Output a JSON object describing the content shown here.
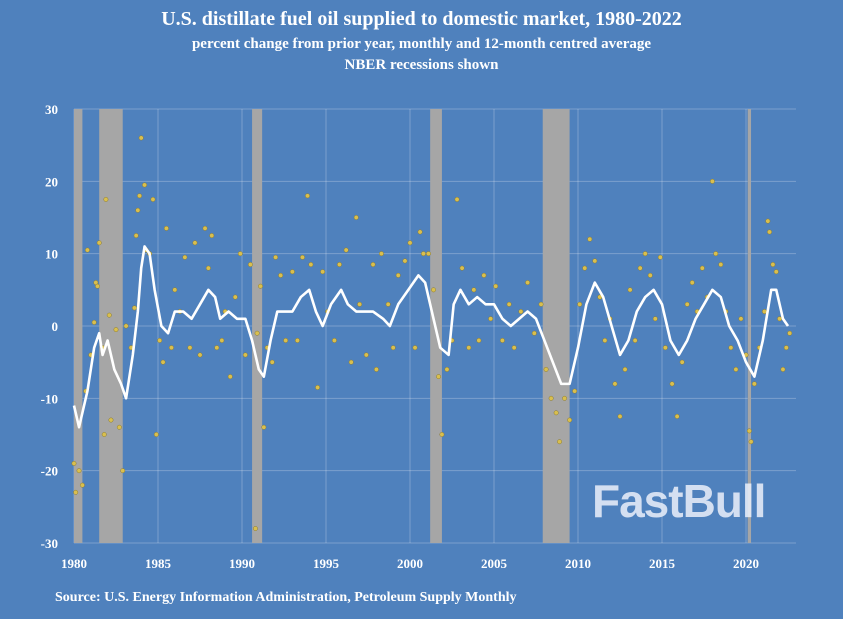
{
  "chart_data": {
    "type": "line",
    "title": "U.S. distillate fuel oil supplied to domestic market, 1980-2022",
    "subtitle": "percent change from prior year, monthly and 12-month centred average",
    "subtitle2": "NBER recessions shown",
    "source": "Source: U.S. Energy Information Administration, Petroleum Supply Monthly",
    "xlim": [
      1980,
      2023
    ],
    "ylim": [
      -30,
      30
    ],
    "x_ticks": [
      "1980",
      "1985",
      "1990",
      "1995",
      "2000",
      "2005",
      "2010",
      "2015",
      "2020"
    ],
    "y_ticks": [
      "30",
      "20",
      "10",
      "0",
      "-10",
      "-20",
      "-30"
    ],
    "grid": true,
    "colors": {
      "background": "#4f81bd",
      "average": "#ffffff",
      "monthly": "#d9bf4f",
      "recession": "#a6a6a6"
    },
    "recessions": [
      [
        1980.0,
        1980.5
      ],
      [
        1981.5,
        1982.9
      ],
      [
        1990.6,
        1991.2
      ],
      [
        2001.2,
        2001.9
      ],
      [
        2007.9,
        2009.5
      ],
      [
        2020.1,
        2020.3
      ]
    ],
    "average_12m": [
      [
        1980.0,
        -11
      ],
      [
        1980.3,
        -14
      ],
      [
        1980.8,
        -9
      ],
      [
        1981.2,
        -3
      ],
      [
        1981.5,
        -1
      ],
      [
        1981.7,
        -4
      ],
      [
        1982.0,
        -2
      ],
      [
        1982.4,
        -6
      ],
      [
        1982.8,
        -8
      ],
      [
        1983.1,
        -10
      ],
      [
        1983.5,
        -4
      ],
      [
        1983.8,
        2
      ],
      [
        1984.0,
        8
      ],
      [
        1984.2,
        11
      ],
      [
        1984.5,
        10
      ],
      [
        1984.8,
        5
      ],
      [
        1985.2,
        0
      ],
      [
        1985.6,
        -1
      ],
      [
        1986.0,
        2
      ],
      [
        1986.5,
        2
      ],
      [
        1987.0,
        1
      ],
      [
        1987.5,
        3
      ],
      [
        1988.0,
        5
      ],
      [
        1988.4,
        4
      ],
      [
        1988.7,
        1
      ],
      [
        1989.2,
        2
      ],
      [
        1989.7,
        1
      ],
      [
        1990.2,
        1
      ],
      [
        1990.6,
        -2
      ],
      [
        1991.0,
        -6
      ],
      [
        1991.3,
        -7
      ],
      [
        1991.7,
        -2
      ],
      [
        1992.1,
        2
      ],
      [
        1992.5,
        2
      ],
      [
        1993.0,
        2
      ],
      [
        1993.5,
        4
      ],
      [
        1994.0,
        5
      ],
      [
        1994.4,
        2
      ],
      [
        1994.8,
        0
      ],
      [
        1995.3,
        3
      ],
      [
        1995.9,
        5
      ],
      [
        1996.3,
        3
      ],
      [
        1996.8,
        2
      ],
      [
        1997.3,
        2
      ],
      [
        1997.8,
        2
      ],
      [
        1998.4,
        1
      ],
      [
        1998.8,
        0
      ],
      [
        1999.3,
        3
      ],
      [
        1999.9,
        5
      ],
      [
        2000.5,
        7
      ],
      [
        2000.9,
        6
      ],
      [
        2001.3,
        2
      ],
      [
        2001.8,
        -3
      ],
      [
        2002.3,
        -4
      ],
      [
        2002.6,
        3
      ],
      [
        2003.0,
        5
      ],
      [
        2003.5,
        3
      ],
      [
        2004.0,
        4
      ],
      [
        2004.5,
        3
      ],
      [
        2005.0,
        3
      ],
      [
        2005.5,
        1
      ],
      [
        2006.0,
        0
      ],
      [
        2006.5,
        1
      ],
      [
        2007.0,
        2
      ],
      [
        2007.5,
        1
      ],
      [
        2008.0,
        -2
      ],
      [
        2008.5,
        -5
      ],
      [
        2009.0,
        -8
      ],
      [
        2009.5,
        -8
      ],
      [
        2010.0,
        -3
      ],
      [
        2010.5,
        3
      ],
      [
        2011.0,
        6
      ],
      [
        2011.5,
        4
      ],
      [
        2012.0,
        0
      ],
      [
        2012.5,
        -4
      ],
      [
        2013.0,
        -2
      ],
      [
        2013.5,
        2
      ],
      [
        2014.0,
        4
      ],
      [
        2014.5,
        5
      ],
      [
        2015.0,
        3
      ],
      [
        2015.5,
        -2
      ],
      [
        2016.0,
        -4
      ],
      [
        2016.5,
        -2
      ],
      [
        2017.0,
        1
      ],
      [
        2017.5,
        3
      ],
      [
        2018.0,
        5
      ],
      [
        2018.5,
        4
      ],
      [
        2019.0,
        0
      ],
      [
        2019.5,
        -2
      ],
      [
        2020.0,
        -5
      ],
      [
        2020.5,
        -7
      ],
      [
        2021.0,
        -2
      ],
      [
        2021.5,
        5
      ],
      [
        2021.8,
        5
      ],
      [
        2022.2,
        1
      ],
      [
        2022.5,
        0
      ]
    ],
    "monthly": [
      [
        1980.0,
        -19
      ],
      [
        1980.1,
        -23
      ],
      [
        1980.3,
        -20
      ],
      [
        1980.5,
        -22
      ],
      [
        1980.7,
        -9
      ],
      [
        1980.8,
        10.5
      ],
      [
        1981.0,
        -4
      ],
      [
        1981.2,
        0.5
      ],
      [
        1981.3,
        6
      ],
      [
        1981.4,
        5.5
      ],
      [
        1981.5,
        11.5
      ],
      [
        1981.7,
        -3
      ],
      [
        1981.8,
        -15
      ],
      [
        1981.9,
        17.5
      ],
      [
        1982.1,
        1.5
      ],
      [
        1982.2,
        -13
      ],
      [
        1982.5,
        -0.5
      ],
      [
        1982.7,
        -14
      ],
      [
        1982.9,
        -20
      ],
      [
        1983.1,
        0
      ],
      [
        1983.4,
        -3
      ],
      [
        1983.6,
        2.5
      ],
      [
        1983.7,
        12.5
      ],
      [
        1983.8,
        16
      ],
      [
        1983.9,
        18
      ],
      [
        1984.0,
        26
      ],
      [
        1984.2,
        19.5
      ],
      [
        1984.3,
        10.5
      ],
      [
        1984.5,
        10
      ],
      [
        1984.7,
        17.5
      ],
      [
        1984.9,
        -15
      ],
      [
        1985.1,
        -2
      ],
      [
        1985.3,
        -5
      ],
      [
        1985.5,
        13.5
      ],
      [
        1985.8,
        -3
      ],
      [
        1986.0,
        5
      ],
      [
        1986.3,
        2
      ],
      [
        1986.6,
        9.5
      ],
      [
        1986.9,
        -3
      ],
      [
        1987.2,
        11.5
      ],
      [
        1987.5,
        -4
      ],
      [
        1987.8,
        13.5
      ],
      [
        1988.0,
        8
      ],
      [
        1988.2,
        12.5
      ],
      [
        1988.5,
        -3
      ],
      [
        1988.8,
        -2
      ],
      [
        1989.0,
        2
      ],
      [
        1989.3,
        -7
      ],
      [
        1989.6,
        4
      ],
      [
        1989.9,
        10
      ],
      [
        1990.2,
        -4
      ],
      [
        1990.5,
        8.5
      ],
      [
        1990.8,
        -28
      ],
      [
        1990.9,
        -1
      ],
      [
        1991.1,
        5.5
      ],
      [
        1991.3,
        -14
      ],
      [
        1991.5,
        -3
      ],
      [
        1991.8,
        -5
      ],
      [
        1992.0,
        9.5
      ],
      [
        1992.3,
        7
      ],
      [
        1992.6,
        -2
      ],
      [
        1993.0,
        7.5
      ],
      [
        1993.3,
        -2
      ],
      [
        1993.6,
        9.5
      ],
      [
        1993.9,
        18
      ],
      [
        1994.1,
        8.5
      ],
      [
        1994.5,
        -8.5
      ],
      [
        1994.8,
        7.5
      ],
      [
        1995.1,
        2
      ],
      [
        1995.5,
        -2
      ],
      [
        1995.8,
        8.5
      ],
      [
        1996.2,
        10.5
      ],
      [
        1996.5,
        -5
      ],
      [
        1996.8,
        15
      ],
      [
        1997.0,
        3
      ],
      [
        1997.4,
        -4
      ],
      [
        1997.8,
        8.5
      ],
      [
        1998.0,
        -6
      ],
      [
        1998.3,
        10
      ],
      [
        1998.7,
        3
      ],
      [
        1999.0,
        -3
      ],
      [
        1999.3,
        7
      ],
      [
        1999.7,
        9
      ],
      [
        2000.0,
        11.5
      ],
      [
        2000.3,
        -3
      ],
      [
        2000.6,
        13
      ],
      [
        2000.8,
        10
      ],
      [
        2001.1,
        10
      ],
      [
        2001.4,
        5
      ],
      [
        2001.7,
        -7
      ],
      [
        2001.9,
        -15
      ],
      [
        2002.2,
        -6
      ],
      [
        2002.5,
        -2
      ],
      [
        2002.8,
        17.5
      ],
      [
        2003.1,
        8
      ],
      [
        2003.5,
        -3
      ],
      [
        2003.8,
        5
      ],
      [
        2004.1,
        -2
      ],
      [
        2004.4,
        7
      ],
      [
        2004.8,
        1
      ],
      [
        2005.1,
        5.5
      ],
      [
        2005.5,
        -2
      ],
      [
        2005.9,
        3
      ],
      [
        2006.2,
        -3
      ],
      [
        2006.6,
        2
      ],
      [
        2007.0,
        6
      ],
      [
        2007.4,
        -1
      ],
      [
        2007.8,
        3
      ],
      [
        2008.1,
        -6
      ],
      [
        2008.4,
        -10
      ],
      [
        2008.7,
        -12
      ],
      [
        2008.9,
        -16
      ],
      [
        2009.2,
        -10
      ],
      [
        2009.5,
        -13
      ],
      [
        2009.8,
        -9
      ],
      [
        2010.1,
        3
      ],
      [
        2010.4,
        8
      ],
      [
        2010.7,
        12
      ],
      [
        2011.0,
        9
      ],
      [
        2011.3,
        4
      ],
      [
        2011.6,
        -2
      ],
      [
        2011.9,
        1
      ],
      [
        2012.2,
        -8
      ],
      [
        2012.5,
        -12.5
      ],
      [
        2012.8,
        -6
      ],
      [
        2013.1,
        5
      ],
      [
        2013.4,
        -2
      ],
      [
        2013.7,
        8
      ],
      [
        2014.0,
        10
      ],
      [
        2014.3,
        7
      ],
      [
        2014.6,
        1
      ],
      [
        2014.9,
        9.5
      ],
      [
        2015.2,
        -3
      ],
      [
        2015.6,
        -8
      ],
      [
        2015.9,
        -12.5
      ],
      [
        2016.2,
        -5
      ],
      [
        2016.5,
        3
      ],
      [
        2016.8,
        6
      ],
      [
        2017.1,
        2
      ],
      [
        2017.4,
        8
      ],
      [
        2017.7,
        4
      ],
      [
        2018.0,
        20
      ],
      [
        2018.2,
        10
      ],
      [
        2018.5,
        8.5
      ],
      [
        2018.8,
        2
      ],
      [
        2019.1,
        -3
      ],
      [
        2019.4,
        -6
      ],
      [
        2019.7,
        1
      ],
      [
        2020.0,
        -4
      ],
      [
        2020.2,
        -14.5
      ],
      [
        2020.3,
        -16
      ],
      [
        2020.5,
        -8
      ],
      [
        2020.8,
        -3
      ],
      [
        2021.1,
        2
      ],
      [
        2021.3,
        14.5
      ],
      [
        2021.4,
        13
      ],
      [
        2021.6,
        8.5
      ],
      [
        2021.8,
        7.5
      ],
      [
        2022.0,
        1
      ],
      [
        2022.2,
        -6
      ],
      [
        2022.4,
        -3
      ],
      [
        2022.6,
        -1
      ]
    ]
  }
}
